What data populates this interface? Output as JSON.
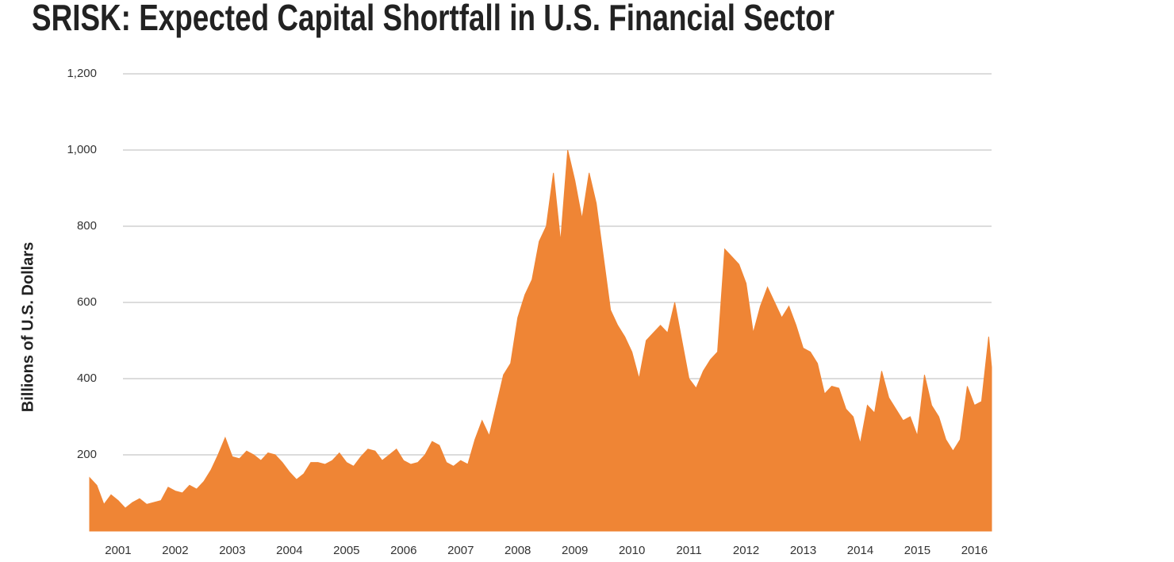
{
  "chart_data": {
    "type": "area",
    "title": "SRISK: Expected Capital Shortfall in U.S. Financial Sector",
    "y_label": "Billions of U.S. Dollars",
    "color": "#ef8535",
    "grid": true,
    "xlim": [
      2000.5,
      2016.3
    ],
    "xticks": [
      2001,
      2002,
      2003,
      2004,
      2005,
      2006,
      2007,
      2008,
      2009,
      2010,
      2011,
      2012,
      2013,
      2014,
      2015,
      2016
    ],
    "ylim": [
      0,
      1200
    ],
    "yticks": [
      200,
      400,
      600,
      800,
      {
        "value": 1000,
        "label": "1,000"
      },
      {
        "value": 1200,
        "label": "1,200"
      }
    ],
    "x": [
      2000.5,
      2000.625,
      2000.75,
      2000.875,
      2001,
      2001.125,
      2001.25,
      2001.375,
      2001.5,
      2001.625,
      2001.75,
      2001.875,
      2002,
      2002.125,
      2002.25,
      2002.375,
      2002.5,
      2002.625,
      2002.75,
      2002.875,
      2003,
      2003.125,
      2003.25,
      2003.375,
      2003.5,
      2003.625,
      2003.75,
      2003.875,
      2004,
      2004.125,
      2004.25,
      2004.375,
      2004.5,
      2004.625,
      2004.75,
      2004.875,
      2005,
      2005.125,
      2005.25,
      2005.375,
      2005.5,
      2005.625,
      2005.75,
      2005.875,
      2006,
      2006.125,
      2006.25,
      2006.375,
      2006.5,
      2006.625,
      2006.75,
      2006.875,
      2007,
      2007.125,
      2007.25,
      2007.375,
      2007.5,
      2007.625,
      2007.75,
      2007.875,
      2008,
      2008.125,
      2008.25,
      2008.375,
      2008.5,
      2008.625,
      2008.75,
      2008.875,
      2009,
      2009.125,
      2009.25,
      2009.375,
      2009.5,
      2009.625,
      2009.75,
      2009.875,
      2010,
      2010.125,
      2010.25,
      2010.375,
      2010.5,
      2010.625,
      2010.75,
      2010.875,
      2011,
      2011.125,
      2011.25,
      2011.375,
      2011.5,
      2011.625,
      2011.75,
      2011.875,
      2012,
      2012.125,
      2012.25,
      2012.375,
      2012.5,
      2012.625,
      2012.75,
      2012.875,
      2013,
      2013.125,
      2013.25,
      2013.375,
      2013.5,
      2013.625,
      2013.75,
      2013.875,
      2014,
      2014.125,
      2014.25,
      2014.375,
      2014.5,
      2014.625,
      2014.75,
      2014.875,
      2015,
      2015.125,
      2015.25,
      2015.375,
      2015.5,
      2015.625,
      2015.75,
      2015.875,
      2016,
      2016.125,
      2016.25,
      2016.3
    ],
    "values": [
      140,
      120,
      70,
      95,
      80,
      60,
      75,
      85,
      70,
      75,
      80,
      115,
      105,
      100,
      120,
      110,
      130,
      160,
      200,
      245,
      195,
      190,
      210,
      200,
      185,
      205,
      200,
      180,
      155,
      135,
      150,
      180,
      180,
      175,
      185,
      205,
      180,
      170,
      195,
      215,
      210,
      185,
      200,
      215,
      185,
      175,
      180,
      200,
      235,
      225,
      180,
      170,
      185,
      175,
      240,
      290,
      250,
      330,
      410,
      440,
      560,
      620,
      660,
      760,
      800,
      940,
      760,
      1000,
      920,
      820,
      940,
      860,
      720,
      580,
      540,
      510,
      470,
      400,
      500,
      520,
      540,
      520,
      600,
      500,
      400,
      375,
      420,
      450,
      470,
      740,
      720,
      700,
      650,
      520,
      590,
      640,
      600,
      560,
      590,
      540,
      480,
      470,
      440,
      360,
      380,
      375,
      320,
      300,
      230,
      330,
      310,
      420,
      350,
      320,
      290,
      300,
      250,
      410,
      330,
      300,
      240,
      210,
      240,
      380,
      330,
      340,
      510,
      430
    ]
  }
}
